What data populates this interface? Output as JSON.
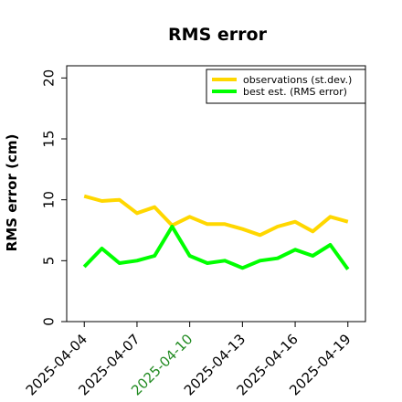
{
  "chart_data": {
    "type": "line",
    "title": "RMS error",
    "xlabel": "",
    "ylabel": "RMS error (cm)",
    "ylim": [
      0,
      21
    ],
    "yticks": [
      0,
      5,
      10,
      15,
      20
    ],
    "xlim_dates": [
      "2025-04-03",
      "2025-04-20"
    ],
    "xtick_dates": [
      "2025-04-04",
      "2025-04-07",
      "2025-04-10",
      "2025-04-13",
      "2025-04-16",
      "2025-04-19"
    ],
    "highlight_tick": "2025-04-10",
    "highlight_color": "#228B22",
    "grid": false,
    "legend_position": "top-right",
    "x": [
      "2025-04-04",
      "2025-04-05",
      "2025-04-06",
      "2025-04-07",
      "2025-04-08",
      "2025-04-09",
      "2025-04-10",
      "2025-04-11",
      "2025-04-12",
      "2025-04-13",
      "2025-04-14",
      "2025-04-15",
      "2025-04-16",
      "2025-04-17",
      "2025-04-18",
      "2025-04-19"
    ],
    "series": [
      {
        "name": "observations (st.dev.)",
        "color": "#FFD700",
        "values": [
          10.3,
          9.9,
          10.0,
          8.9,
          9.4,
          7.9,
          8.6,
          8.0,
          8.0,
          7.6,
          7.1,
          7.8,
          8.2,
          7.4,
          8.6,
          8.2
        ]
      },
      {
        "name": "best est. (RMS error)",
        "color": "#00FF00",
        "values": [
          4.5,
          6.0,
          4.8,
          5.0,
          5.4,
          7.8,
          5.4,
          4.8,
          5.0,
          4.4,
          5.0,
          5.2,
          5.9,
          5.4,
          6.3,
          4.3
        ]
      }
    ]
  }
}
